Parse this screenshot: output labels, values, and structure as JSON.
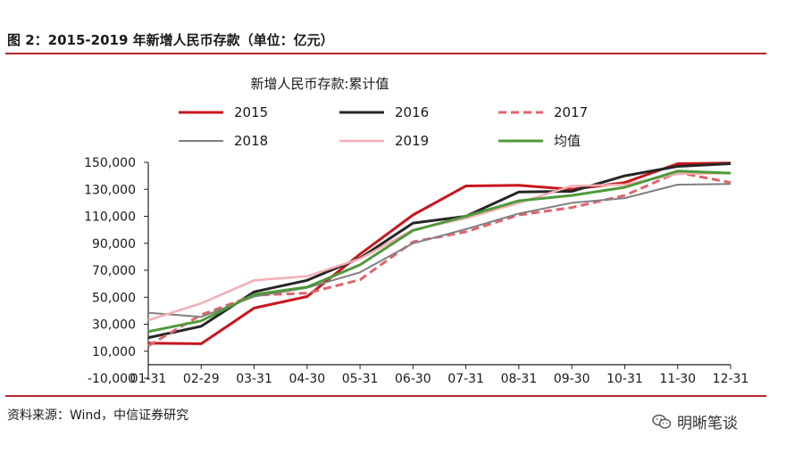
{
  "figure_title": "图 2：2015-2019 年新增人民币存款（单位：亿元）",
  "source_note": "资料来源：Wind，中信证券研究",
  "watermark": "明晰笔谈",
  "colors": {
    "rule": "#b3282d"
  },
  "chart_data": {
    "type": "line",
    "title": "新增人民币存款:累计值",
    "xlabel": "",
    "ylabel": "",
    "ylim": [
      -10000,
      150000
    ],
    "yticks": [
      -10000,
      10000,
      30000,
      50000,
      70000,
      90000,
      110000,
      130000,
      150000
    ],
    "ytick_labels": [
      "-10,000",
      "10,000",
      "30,000",
      "50,000",
      "70,000",
      "90,000",
      "110,000",
      "130,000",
      "150,000"
    ],
    "categories": [
      "01-31",
      "02-29",
      "03-31",
      "04-30",
      "05-31",
      "06-30",
      "07-31",
      "08-31",
      "09-30",
      "10-31",
      "11-30",
      "12-31"
    ],
    "grid": false,
    "legend_position": "top",
    "series": [
      {
        "name": "2015",
        "color": "#c8161d",
        "dash": "solid",
        "width": 3,
        "values": [
          16000,
          15500,
          42000,
          50500,
          82000,
          111000,
          132500,
          133000,
          130000,
          135000,
          149000,
          149500
        ]
      },
      {
        "name": "2016",
        "color": "#262626",
        "dash": "solid",
        "width": 3,
        "values": [
          20000,
          28500,
          54000,
          62500,
          79000,
          105000,
          110000,
          128000,
          128500,
          140000,
          147000,
          149000
        ]
      },
      {
        "name": "2017",
        "color": "#e0646e",
        "dash": "dashed",
        "width": 3,
        "values": [
          14000,
          37000,
          51500,
          53000,
          63000,
          91000,
          98500,
          111000,
          116500,
          125500,
          142500,
          135000
        ]
      },
      {
        "name": "2018",
        "color": "#808080",
        "dash": "solid",
        "width": 2,
        "values": [
          38500,
          35500,
          50500,
          57000,
          68500,
          90000,
          100500,
          112000,
          120000,
          123500,
          133500,
          134000
        ]
      },
      {
        "name": "2019",
        "color": "#f4aeb4",
        "dash": "solid",
        "width": 2.5,
        "values": [
          33000,
          45500,
          62500,
          65500,
          78500,
          100000,
          108500,
          120000,
          132500,
          133500,
          141500,
          142000
        ]
      },
      {
        "name": "均值",
        "color": "#4f9a3a",
        "dash": "solid",
        "width": 3,
        "values": [
          24500,
          32500,
          52000,
          57500,
          74000,
          99500,
          110000,
          121500,
          125500,
          131500,
          143500,
          142000
        ]
      }
    ]
  }
}
